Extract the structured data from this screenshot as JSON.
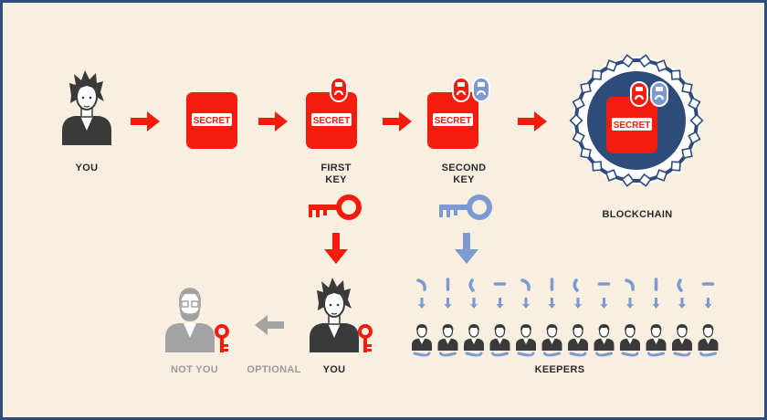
{
  "labels": {
    "you": "YOU",
    "first_key_line1": "FIRST",
    "first_key_line2": "KEY",
    "second_key_line1": "SECOND",
    "second_key_line2": "KEY",
    "blockchain": "BLOCKCHAIN",
    "not_you": "NOT YOU",
    "optional": "OPTIONAL",
    "you_bottom": "YOU",
    "keepers": "KEEPERS"
  },
  "document_text": "SECRET",
  "colors": {
    "background": "#f8efe0",
    "frame": "#2f4b7c",
    "red": "#f41c0c",
    "blue": "#7c99d2",
    "navy": "#2f4b7c",
    "dark": "#3a3a3a",
    "grey": "#a3a3a3"
  },
  "keepers_count": 12,
  "icons": [
    "person-icon",
    "secret-document-icon",
    "red-padlock-icon",
    "blue-padlock-icon",
    "red-key-icon",
    "blue-key-icon",
    "arrow-icon",
    "blockchain-ring-icon"
  ]
}
